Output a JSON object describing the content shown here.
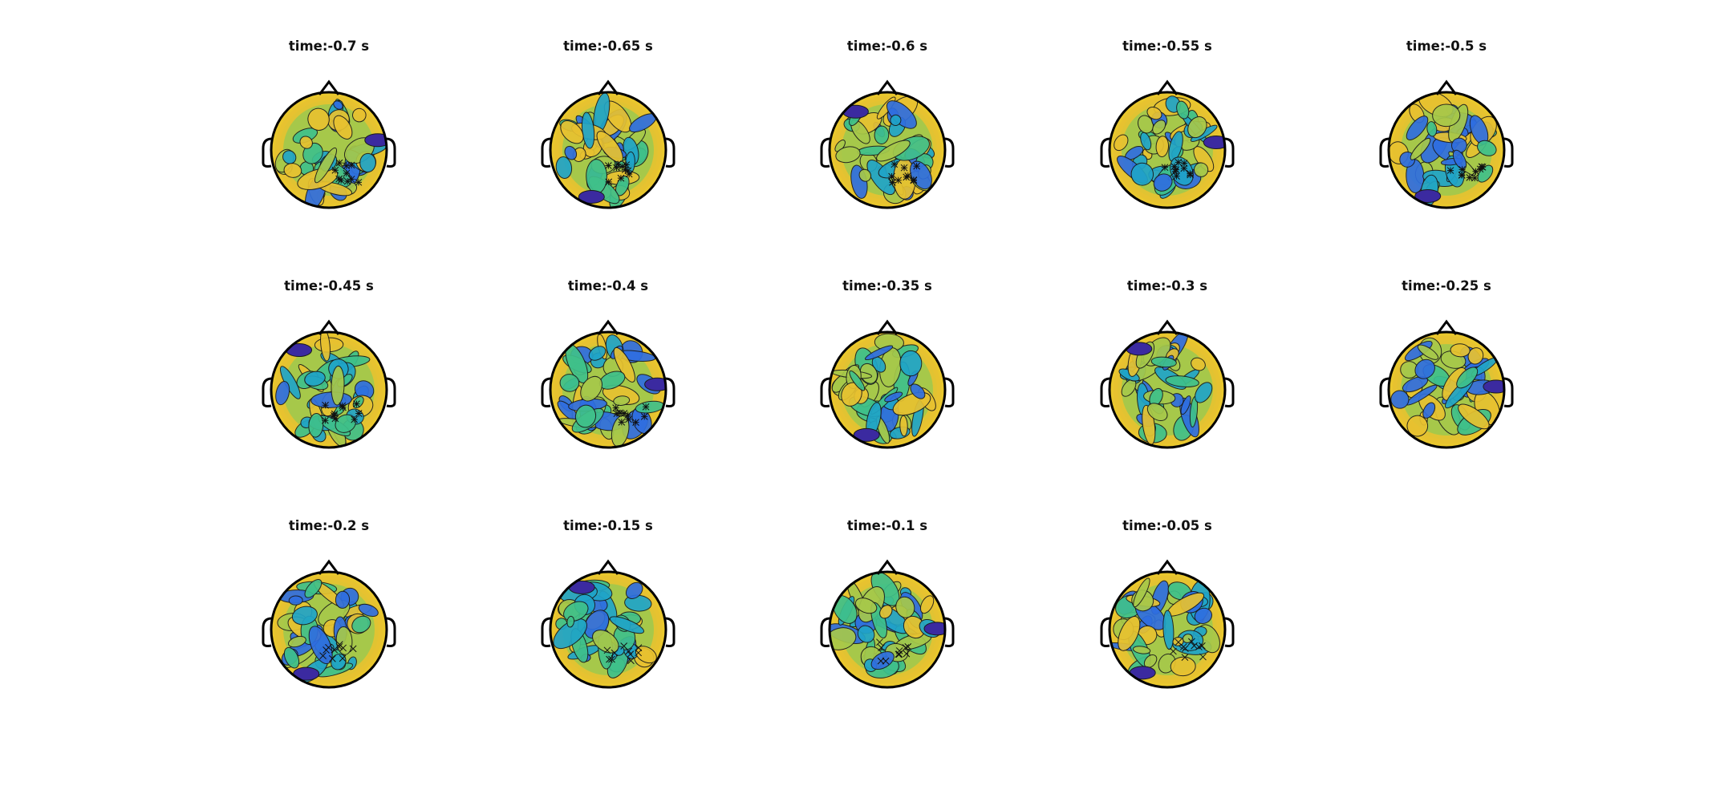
{
  "figure": {
    "panels": [
      {
        "title": "time:-0.7 s",
        "markers": "*"
      },
      {
        "title": "time:-0.65 s",
        "markers": "*"
      },
      {
        "title": "time:-0.6 s",
        "markers": "*"
      },
      {
        "title": "time:-0.55 s",
        "markers": "*"
      },
      {
        "title": "time:-0.5 s",
        "markers": "*"
      },
      {
        "title": "time:-0.45 s",
        "markers": "*"
      },
      {
        "title": "time:-0.4 s",
        "markers": "*"
      },
      {
        "title": "time:-0.35 s",
        "markers": ""
      },
      {
        "title": "time:-0.3 s",
        "markers": ""
      },
      {
        "title": "time:-0.25 s",
        "markers": ""
      },
      {
        "title": "time:-0.2 s",
        "markers": "x"
      },
      {
        "title": "time:-0.15 s",
        "markers": "x"
      },
      {
        "title": "time:-0.1 s",
        "markers": "x"
      },
      {
        "title": "time:-0.05 s",
        "markers": "x"
      }
    ],
    "colormap": [
      "#3b2aa0",
      "#2f6ee0",
      "#20a4c8",
      "#3fc08a",
      "#a6c84a",
      "#e8c230",
      "#f8f20e"
    ]
  }
}
